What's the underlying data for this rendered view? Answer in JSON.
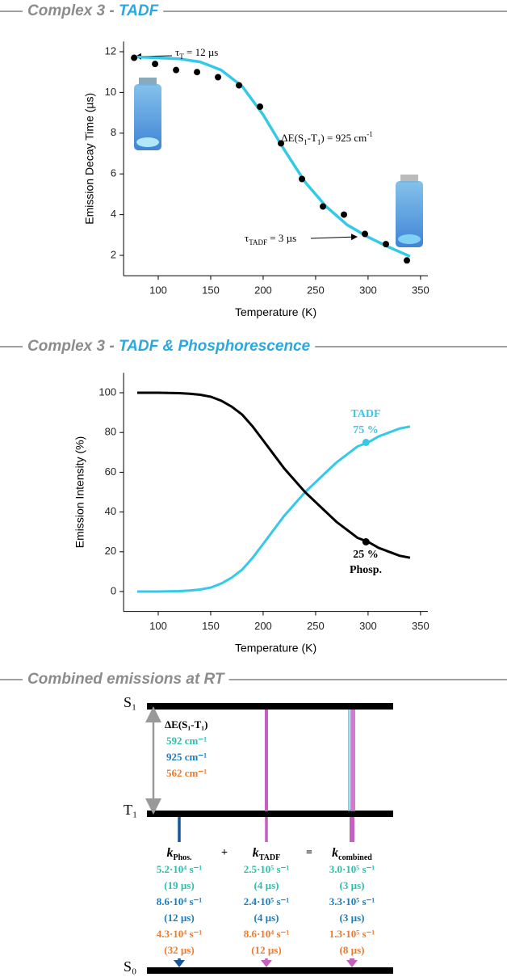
{
  "headers": [
    {
      "parts": [
        {
          "text": "Complex 3 - ",
          "color": "#8c8c8c"
        },
        {
          "text": "TADF",
          "color": "#29a9e0"
        }
      ]
    },
    {
      "parts": [
        {
          "text": "Complex 3 - ",
          "color": "#8c8c8c"
        },
        {
          "text": "TADF & Phosphorescence",
          "color": "#29a9e0"
        }
      ]
    },
    {
      "parts": [
        {
          "text": "Combined emissions at RT",
          "color": "#8c8c8c"
        }
      ]
    }
  ],
  "chart_data": [
    {
      "type": "scatter",
      "xlabel": "Temperature (K)",
      "ylabel": "Emission Decay Time (µs)",
      "xlim": [
        67,
        357
      ],
      "ylim": [
        1,
        12.5
      ],
      "xticks": [
        100,
        150,
        200,
        250,
        300,
        350
      ],
      "yticks": [
        2,
        4,
        6,
        8,
        10,
        12
      ],
      "color": "#000000",
      "x": [
        77,
        97,
        117,
        137,
        157,
        177,
        197,
        217,
        237,
        257,
        277,
        297,
        317,
        337
      ],
      "values": [
        11.7,
        11.4,
        11.1,
        11.0,
        10.75,
        10.35,
        9.3,
        7.5,
        5.75,
        4.4,
        4.0,
        3.05,
        2.55,
        1.75
      ],
      "fit": {
        "color": "#35c9e8",
        "x": [
          75,
          100,
          120,
          140,
          160,
          180,
          200,
          220,
          240,
          260,
          280,
          300,
          320,
          340
        ],
        "values": [
          11.75,
          11.7,
          11.65,
          11.5,
          11.1,
          10.3,
          8.9,
          7.2,
          5.6,
          4.4,
          3.5,
          2.9,
          2.4,
          1.95
        ]
      },
      "annotations": [
        {
          "parts": [
            {
              "text": "τ"
            },
            {
              "text": "T",
              "style": "sub"
            },
            {
              "text": " = 12 µs"
            }
          ]
        },
        {
          "parts": [
            {
              "text": "ΔE(S"
            },
            {
              "text": "1",
              "style": "sub"
            },
            {
              "text": "-T"
            },
            {
              "text": "1",
              "style": "sub"
            },
            {
              "text": ") = 925 cm"
            },
            {
              "text": "-1",
              "style": "sup"
            }
          ]
        },
        {
          "parts": [
            {
              "text": "τ"
            },
            {
              "text": "TADF",
              "style": "sub"
            },
            {
              "text": " = 3 µs"
            }
          ]
        }
      ]
    },
    {
      "type": "line",
      "xlabel": "Temperature (K)",
      "ylabel": "Emission Intensity (%)",
      "xlim": [
        67,
        357
      ],
      "ylim": [
        -10,
        110
      ],
      "xticks": [
        100,
        150,
        200,
        250,
        300,
        350
      ],
      "yticks": [
        0,
        20,
        40,
        60,
        80,
        100
      ],
      "x": [
        80,
        90,
        100,
        110,
        120,
        130,
        140,
        150,
        160,
        170,
        180,
        190,
        200,
        210,
        220,
        230,
        240,
        250,
        260,
        270,
        280,
        290,
        300,
        310,
        320,
        330,
        340
      ],
      "series": [
        {
          "name": "TADF",
          "color": "#35c9e8",
          "values": [
            0,
            0,
            0,
            0.1,
            0.2,
            0.5,
            1,
            2,
            4,
            7,
            11,
            17,
            24,
            31,
            38,
            44,
            50,
            55,
            60,
            65,
            69,
            73,
            75,
            78,
            80,
            82,
            83
          ],
          "marker": {
            "x": 298,
            "value": 75,
            "value_label": "75 %"
          }
        },
        {
          "name": "Phosp.",
          "color": "#000000",
          "values": [
            100,
            100,
            100,
            99.9,
            99.8,
            99.5,
            99,
            98,
            96,
            93,
            89,
            83,
            76,
            69,
            62,
            56,
            50,
            45,
            40,
            35,
            31,
            27,
            25,
            22,
            20,
            18,
            17
          ],
          "marker": {
            "x": 298,
            "value": 25,
            "value_label": "25 %"
          }
        }
      ]
    }
  ],
  "diagram": {
    "levels": [
      "S₁",
      "T₁",
      "S₀"
    ],
    "gap": {
      "label": "ΔE(S₁-T₁)",
      "values": [
        "592 cm⁻¹",
        "925 cm⁻¹",
        "562 cm⁻¹"
      ]
    },
    "colors": [
      "#2bbfae",
      "#1b7dbf",
      "#ef7b2e"
    ],
    "operators": [
      "+",
      "="
    ],
    "columns": [
      {
        "symbol": "k",
        "subscript": "Phos.",
        "rows": [
          "5.2·10⁴ s⁻¹",
          "(19 µs)",
          "8.6·10⁴ s⁻¹",
          "(12 µs)",
          "4.3·10⁴ s⁻¹",
          "(32 µs)"
        ]
      },
      {
        "symbol": "k",
        "subscript": "TADF",
        "rows": [
          "2.5·10⁵ s⁻¹",
          "(4 µs)",
          "2.4·10⁵ s⁻¹",
          "(4 µs)",
          "8.6·10⁴ s⁻¹",
          "(12 µs)"
        ]
      },
      {
        "symbol": "k",
        "subscript": "combined",
        "rows": [
          "3.0·10⁵ s⁻¹",
          "(3 µs)",
          "3.3·10⁵ s⁻¹",
          "(3 µs)",
          "1.3·10⁵ s⁻¹",
          "(8 µs)"
        ]
      }
    ]
  }
}
